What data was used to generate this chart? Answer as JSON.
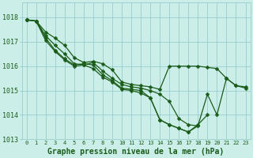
{
  "title": "Graphe pression niveau de la mer (hPa)",
  "hours": [
    0,
    1,
    2,
    3,
    4,
    5,
    6,
    7,
    8,
    9,
    10,
    11,
    12,
    13,
    14,
    15,
    16,
    17,
    18,
    19,
    20,
    21,
    22,
    23
  ],
  "ylim": [
    1013.0,
    1018.6
  ],
  "yticks": [
    1013,
    1014,
    1015,
    1016,
    1017,
    1018
  ],
  "bg_color": "#cceee8",
  "grid_color": "#99cccc",
  "line_color": "#1a5c1a",
  "lines": [
    {
      "x": [
        0,
        1,
        2,
        3,
        4,
        5,
        6,
        7,
        8,
        9,
        10,
        11,
        12,
        13,
        14,
        15,
        16,
        17,
        18,
        19,
        20,
        21,
        22,
        23
      ],
      "y": [
        1017.9,
        1017.85,
        1017.4,
        1017.15,
        1016.85,
        1016.35,
        1016.15,
        1016.2,
        1016.1,
        1015.85,
        1015.35,
        1015.25,
        1015.2,
        1015.15,
        1015.05,
        1016.0,
        1016.0,
        1016.0,
        1016.0,
        1015.95,
        1015.9,
        1015.5,
        1015.2,
        1015.15
      ]
    },
    {
      "x": [
        0,
        1,
        2,
        3,
        4,
        5,
        6,
        7,
        8,
        9,
        10,
        11,
        12,
        13,
        14,
        15,
        16,
        17,
        18,
        19,
        20,
        21,
        22,
        23
      ],
      "y": [
        1017.9,
        1017.85,
        1017.25,
        1016.85,
        1016.5,
        1016.1,
        1016.05,
        1016.15,
        1015.8,
        1015.5,
        1015.25,
        1015.15,
        1015.1,
        1015.0,
        1014.85,
        1014.55,
        1013.85,
        1013.6,
        1013.55,
        1014.85,
        1014.0,
        1015.5,
        1015.2,
        1015.1
      ]
    },
    {
      "x": [
        0,
        1,
        2,
        3,
        4,
        5,
        6,
        7,
        8,
        9,
        10,
        11,
        12,
        13,
        14,
        15,
        16,
        17,
        18,
        19
      ],
      "y": [
        1017.9,
        1017.85,
        1017.15,
        1016.65,
        1016.3,
        1016.05,
        1016.1,
        1016.05,
        1015.65,
        1015.4,
        1015.1,
        1015.05,
        1015.0,
        1014.7,
        1013.8,
        1013.6,
        1013.45,
        1013.3,
        1013.6,
        1014.0
      ]
    },
    {
      "x": [
        0,
        1,
        2,
        3,
        4,
        5,
        6,
        7,
        8,
        9,
        10,
        11,
        12,
        13,
        14,
        15,
        16,
        17,
        18
      ],
      "y": [
        1017.9,
        1017.85,
        1017.05,
        1016.6,
        1016.25,
        1016.0,
        1016.05,
        1015.9,
        1015.55,
        1015.35,
        1015.05,
        1015.0,
        1014.9,
        1014.7,
        1013.8,
        1013.6,
        1013.45,
        1013.3,
        1013.55
      ]
    }
  ],
  "marker": "D",
  "marker_size": 2.5,
  "line_width": 0.9,
  "font_color": "#1a5c1a",
  "tick_fontsize": 6,
  "xlabel_fontsize": 7
}
